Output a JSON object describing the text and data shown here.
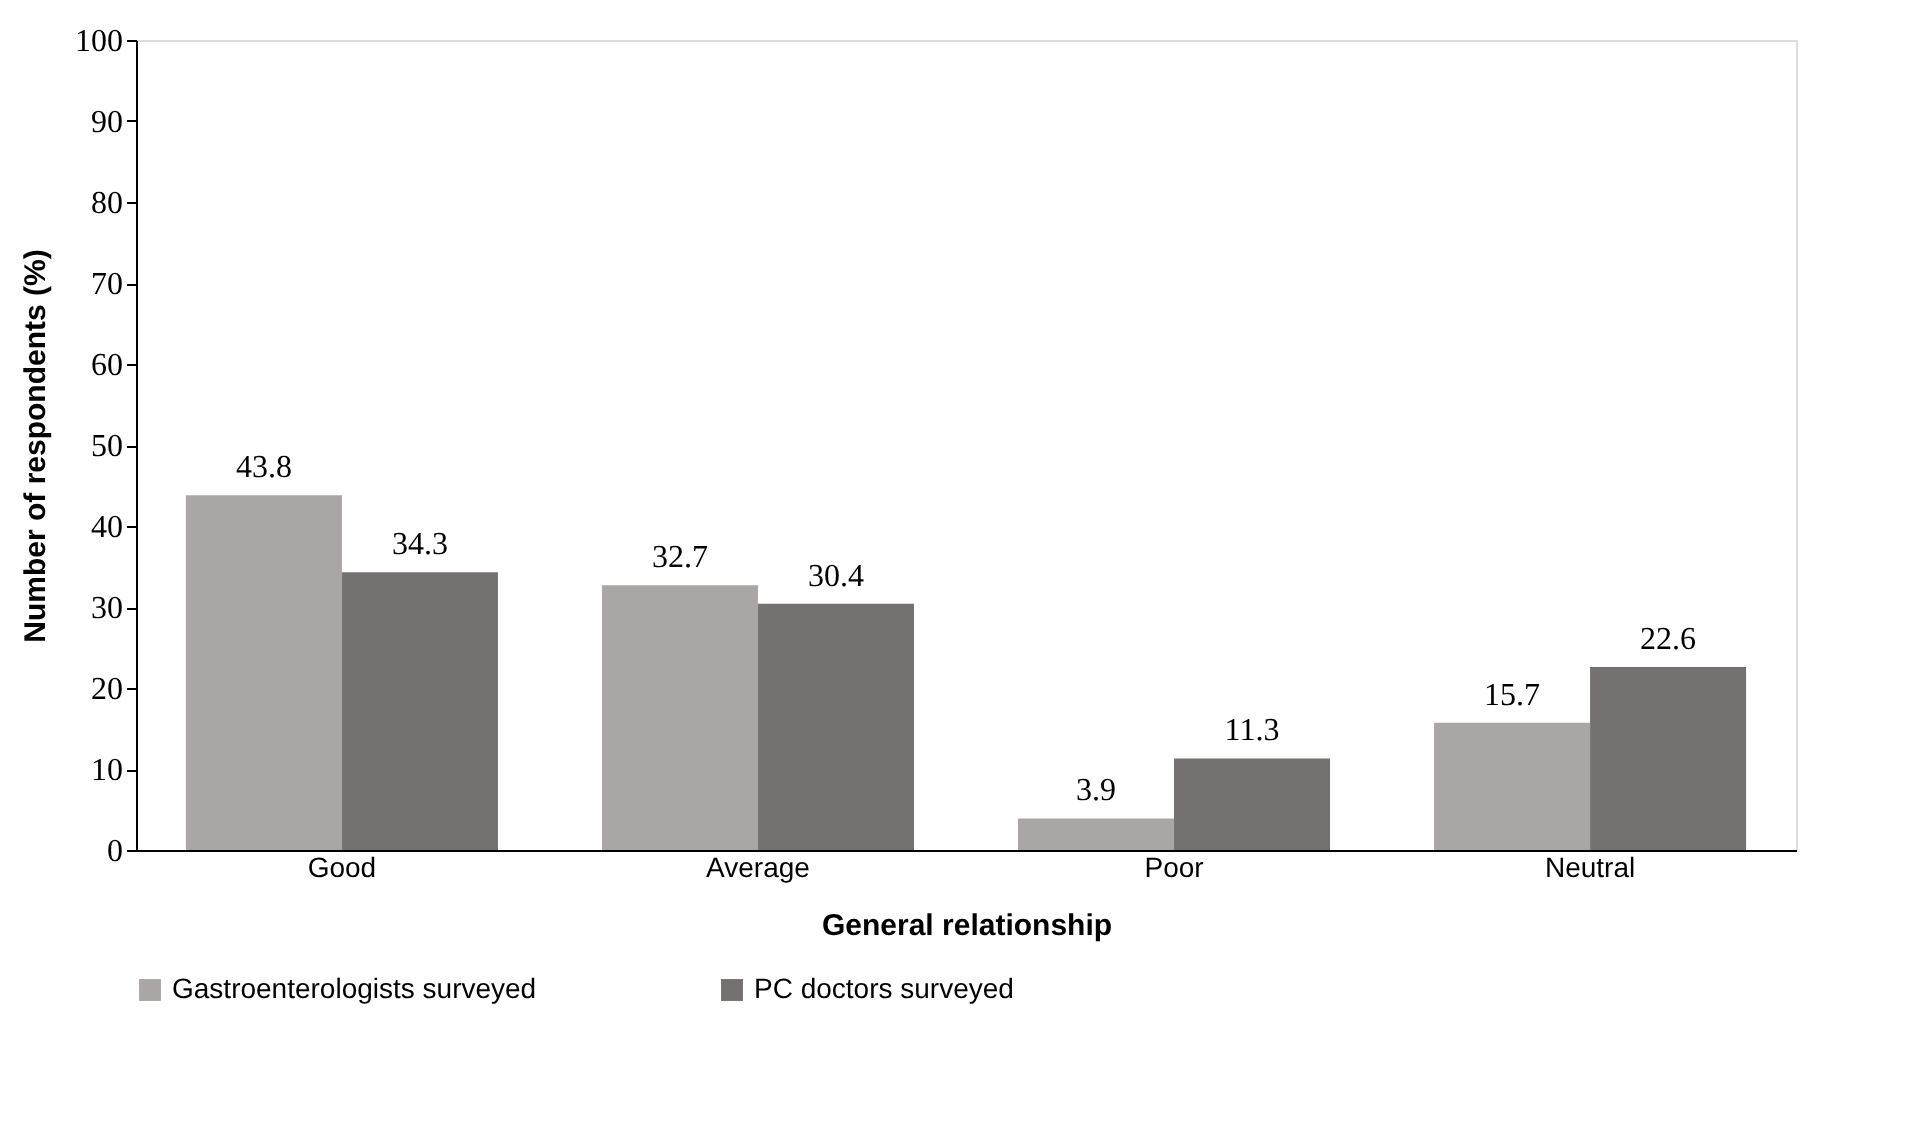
{
  "chart_data": {
    "type": "bar",
    "xlabel": "General relationship",
    "ylabel": "Number of respondents (%)",
    "categories": [
      "Good",
      "Average",
      "Poor",
      "Neutral"
    ],
    "series": [
      {
        "name": "Gastroenterologists surveyed",
        "color": "#aaa6a5",
        "values": [
          43.8,
          32.7,
          3.9,
          15.7
        ]
      },
      {
        "name": "PC doctors surveyed",
        "color": "#767171",
        "values": [
          34.3,
          30.4,
          11.3,
          22.6
        ]
      }
    ],
    "ylim": [
      0,
      100
    ],
    "yticks": [
      0,
      10,
      20,
      30,
      40,
      50,
      60,
      70,
      80,
      90,
      100
    ],
    "grid": false,
    "legend": "bottom",
    "data_labels": true
  }
}
